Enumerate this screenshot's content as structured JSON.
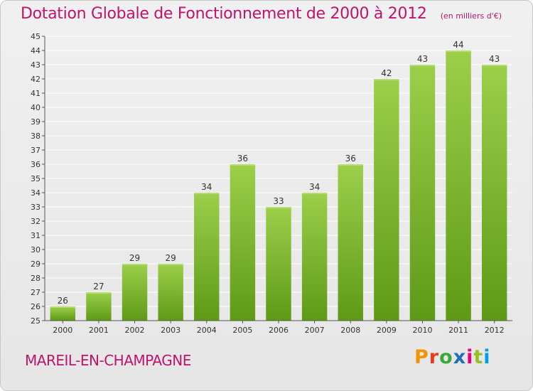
{
  "header": {
    "title": "Dotation Globale de Fonctionnement de 2000 à 2012",
    "subtitle": "(en milliers d'€)"
  },
  "footer": {
    "commune": "MAREIL-EN-CHAMPAGNE",
    "brand": "Proxiti",
    "brand_colors": [
      "#f29400",
      "#e73c1e",
      "#3aa935",
      "#1d71b8",
      "#e6007e",
      "#95c11f",
      "#009fe3"
    ]
  },
  "colors": {
    "accent": "#c0136b",
    "bar_top": "#9ccf4a",
    "bar_bottom": "#5e9a16",
    "grid": "#ffffff",
    "axis": "#555555"
  },
  "chart_data": {
    "type": "bar",
    "categories": [
      "2000",
      "2001",
      "2002",
      "2003",
      "2004",
      "2005",
      "2006",
      "2007",
      "2008",
      "2009",
      "2010",
      "2011",
      "2012"
    ],
    "values": [
      26,
      27,
      29,
      29,
      34,
      36,
      33,
      34,
      36,
      42,
      43,
      44,
      43
    ],
    "ylim": [
      25,
      45
    ],
    "yticks": [
      25,
      26,
      27,
      28,
      29,
      30,
      31,
      32,
      33,
      34,
      35,
      36,
      37,
      38,
      39,
      40,
      41,
      42,
      43,
      44,
      45
    ],
    "grid": true,
    "data_labels": true
  }
}
